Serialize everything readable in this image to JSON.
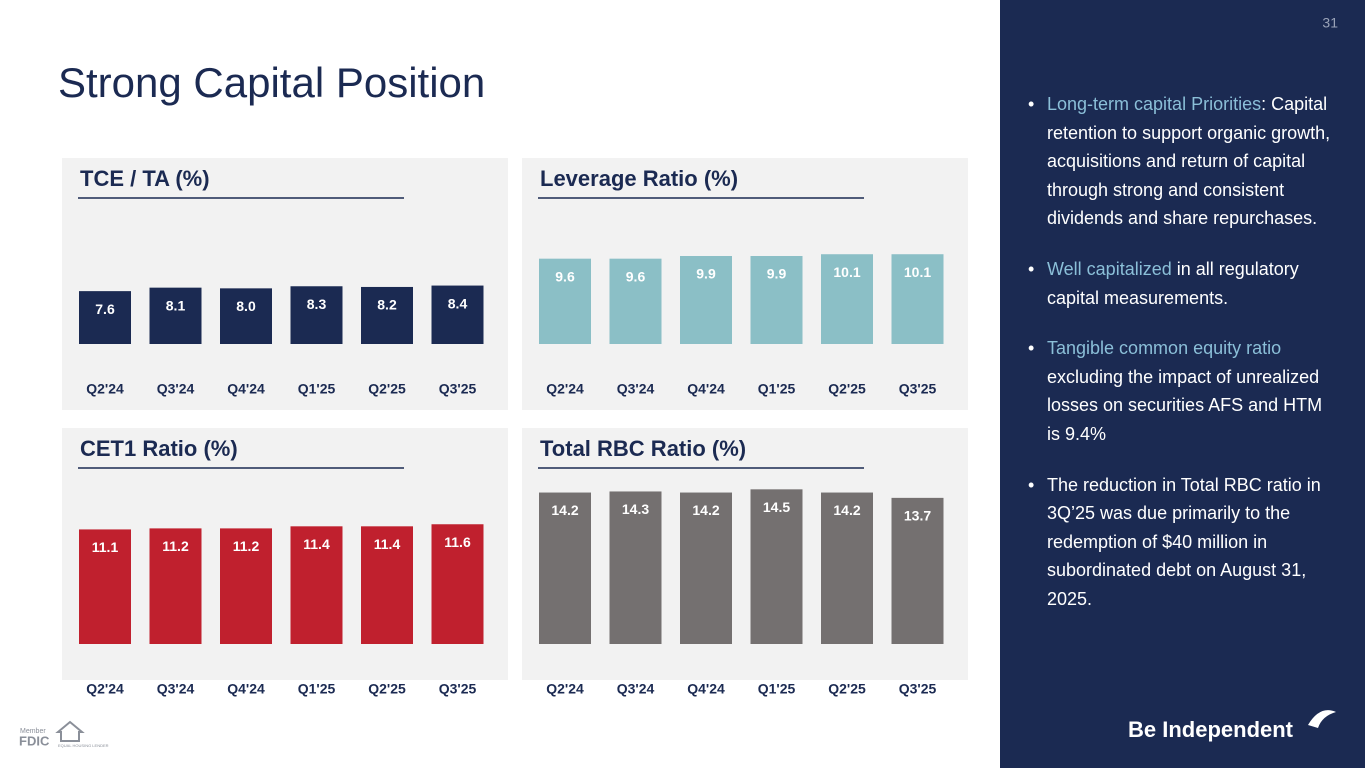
{
  "page_number": "31",
  "title": "Strong Capital Position",
  "chart_data": [
    {
      "type": "bar",
      "title": "TCE / TA (%)",
      "categories": [
        "Q2'24",
        "Q3'24",
        "Q4'24",
        "Q1'25",
        "Q2'25",
        "Q3'25"
      ],
      "values": [
        7.6,
        8.1,
        8.0,
        8.3,
        8.2,
        8.4
      ],
      "value_labels": [
        "7.6",
        "8.1",
        "8.0",
        "8.3",
        "8.2",
        "8.4"
      ],
      "color": "#1b2a52",
      "ylim": [
        0,
        23
      ]
    },
    {
      "type": "bar",
      "title": "Leverage Ratio (%)",
      "categories": [
        "Q2'24",
        "Q3'24",
        "Q4'24",
        "Q1'25",
        "Q2'25",
        "Q3'25"
      ],
      "values": [
        9.6,
        9.6,
        9.9,
        9.9,
        10.1,
        10.1
      ],
      "color": "#8bbfc6",
      "ylim": [
        0,
        18
      ]
    },
    {
      "type": "bar",
      "title": "CET1 Ratio (%)",
      "categories": [
        "Q2'24",
        "Q3'24",
        "Q4'24",
        "Q1'25",
        "Q2'25",
        "Q3'25"
      ],
      "values": [
        11.1,
        11.2,
        11.2,
        11.4,
        11.4,
        11.6
      ],
      "color": "#c0202e",
      "ylim": [
        0,
        15.5
      ]
    },
    {
      "type": "bar",
      "title": "Total RBC Ratio (%)",
      "categories": [
        "Q2'24",
        "Q3'24",
        "Q4'24",
        "Q1'25",
        "Q2'25",
        "Q3'25"
      ],
      "values": [
        14.2,
        14.3,
        14.2,
        14.5,
        14.2,
        13.7
      ],
      "color": "#747070",
      "ylim": [
        0,
        15
      ]
    }
  ],
  "bullets": [
    {
      "highlight": "Long-term capital Priorities",
      "text": ": Capital retention to support organic growth, acquisitions and return of capital through strong and consistent dividends and share repurchases."
    },
    {
      "highlight": "Well capitalized",
      "text": " in all regulatory capital measurements."
    },
    {
      "highlight": "Tangible common equity ratio",
      "text": " excluding the impact of unrealized losses on securities AFS and HTM  is 9.4%"
    },
    {
      "text": "The reduction in Total RBC ratio in 3Q’25 was due primarily to the redemption of $40 million in subordinated debt on August 31, 2025."
    }
  ],
  "footer": {
    "brand": "Be Independent",
    "member": "Member",
    "fdic": "FDIC",
    "lender": "EQUAL HOUSING LENDER"
  }
}
